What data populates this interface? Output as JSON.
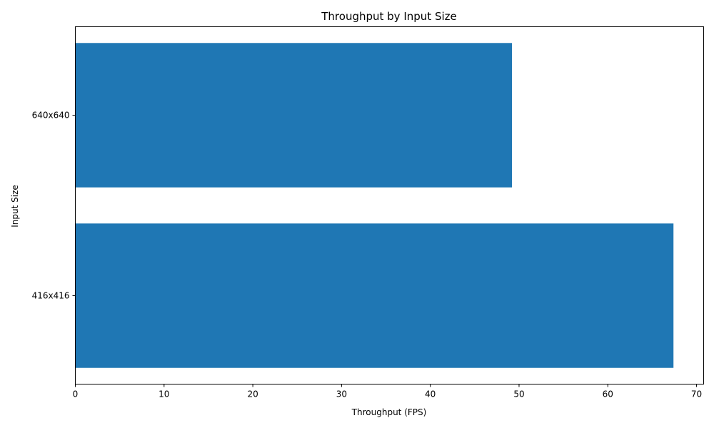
{
  "chart_data": {
    "type": "bar",
    "orientation": "horizontal",
    "title": "Throughput by Input Size",
    "xlabel": "Throughput (FPS)",
    "ylabel": "Input Size",
    "categories": [
      "416x416",
      "640x640"
    ],
    "values": [
      67.4,
      49.2
    ],
    "xlim": [
      0,
      70.8
    ],
    "x_ticks": [
      0,
      10,
      20,
      30,
      40,
      50,
      60,
      70
    ],
    "grid": false,
    "bar_color": "#1f77b4"
  }
}
